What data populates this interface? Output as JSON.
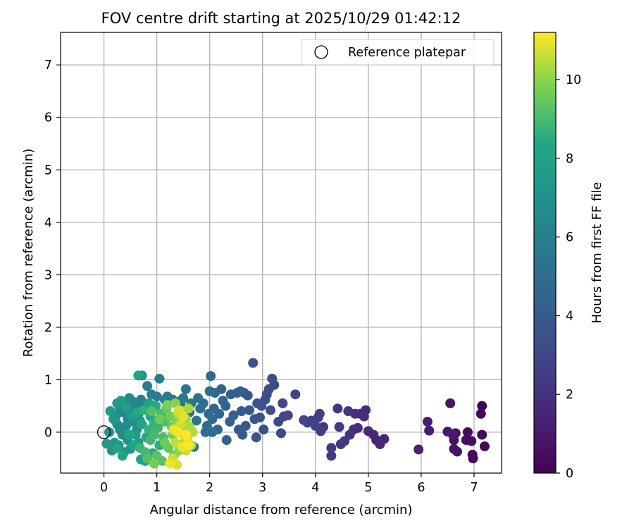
{
  "chart_data": {
    "type": "scatter",
    "title": "FOV centre drift starting at 2025/10/29 01:42:12",
    "xlabel": "Angular distance from reference (arcmin)",
    "ylabel": "Rotation from reference (arcmin)",
    "xlim": [
      -0.82,
      7.52
    ],
    "ylim": [
      -0.78,
      7.62
    ],
    "xticks": [
      0,
      1,
      2,
      3,
      4,
      5,
      6,
      7
    ],
    "yticks": [
      0,
      1,
      2,
      3,
      4,
      5,
      6,
      7
    ],
    "grid": true,
    "legend": {
      "placement": "top-right",
      "entries": [
        "Reference platepar"
      ]
    },
    "reference_point": {
      "name": "Reference platepar",
      "x": 0,
      "y": 0
    },
    "colorbar": {
      "label": "Hours from first FF file",
      "range": [
        0,
        11.2
      ],
      "ticks": [
        0,
        2,
        4,
        6,
        8,
        10
      ],
      "colormap": "viridis"
    },
    "points": [
      {
        "x": 7.15,
        "y": 0.5,
        "t": 0.1
      },
      {
        "x": 7.13,
        "y": 0.35,
        "t": 0.2
      },
      {
        "x": 7.2,
        "y": -0.27,
        "t": 0.2
      },
      {
        "x": 7.15,
        "y": -0.05,
        "t": 0.3
      },
      {
        "x": 6.98,
        "y": -0.5,
        "t": 0.3
      },
      {
        "x": 6.97,
        "y": -0.43,
        "t": 0.4
      },
      {
        "x": 6.88,
        "y": 0.0,
        "t": 0.4
      },
      {
        "x": 6.95,
        "y": -0.17,
        "t": 0.5
      },
      {
        "x": 6.85,
        "y": -0.15,
        "t": 0.5
      },
      {
        "x": 6.65,
        "y": -0.02,
        "t": 0.6
      },
      {
        "x": 6.62,
        "y": -0.15,
        "t": 0.7
      },
      {
        "x": 6.62,
        "y": -0.32,
        "t": 0.7
      },
      {
        "x": 6.68,
        "y": -0.37,
        "t": 0.8
      },
      {
        "x": 6.55,
        "y": 0.55,
        "t": 0.8
      },
      {
        "x": 6.5,
        "y": 0.01,
        "t": 0.9
      },
      {
        "x": 6.6,
        "y": -0.05,
        "t": 1.0
      },
      {
        "x": 6.15,
        "y": 0.03,
        "t": 1.1
      },
      {
        "x": 6.12,
        "y": 0.2,
        "t": 1.2
      },
      {
        "x": 5.95,
        "y": -0.33,
        "t": 1.3
      },
      {
        "x": 5.3,
        "y": -0.13,
        "t": 1.5
      },
      {
        "x": 5.22,
        "y": -0.23,
        "t": 1.5
      },
      {
        "x": 5.15,
        "y": -0.15,
        "t": 1.6
      },
      {
        "x": 5.1,
        "y": -0.05,
        "t": 1.6
      },
      {
        "x": 5.0,
        "y": 0.02,
        "t": 1.7
      },
      {
        "x": 4.95,
        "y": 0.42,
        "t": 1.7
      },
      {
        "x": 4.92,
        "y": 0.3,
        "t": 1.8
      },
      {
        "x": 4.85,
        "y": 0.35,
        "t": 1.8
      },
      {
        "x": 4.8,
        "y": 0.08,
        "t": 1.9
      },
      {
        "x": 4.72,
        "y": 0.05,
        "t": 1.9
      },
      {
        "x": 4.75,
        "y": 0.35,
        "t": 2.0
      },
      {
        "x": 4.65,
        "y": -0.05,
        "t": 2.0
      },
      {
        "x": 4.62,
        "y": 0.4,
        "t": 2.1
      },
      {
        "x": 4.55,
        "y": -0.17,
        "t": 2.1
      },
      {
        "x": 4.48,
        "y": -0.23,
        "t": 2.2
      },
      {
        "x": 4.42,
        "y": 0.45,
        "t": 2.2
      },
      {
        "x": 4.45,
        "y": 0.1,
        "t": 2.3
      },
      {
        "x": 4.3,
        "y": -0.45,
        "t": 2.3
      },
      {
        "x": 4.3,
        "y": -0.3,
        "t": 2.4
      },
      {
        "x": 4.15,
        "y": 0.1,
        "t": 2.4
      },
      {
        "x": 4.1,
        "y": 0.02,
        "t": 2.5
      },
      {
        "x": 4.08,
        "y": 0.35,
        "t": 2.5
      },
      {
        "x": 4.05,
        "y": 0.28,
        "t": 2.6
      },
      {
        "x": 4.0,
        "y": 0.12,
        "t": 2.6
      },
      {
        "x": 3.92,
        "y": 0.22,
        "t": 2.7
      },
      {
        "x": 3.85,
        "y": 0.18,
        "t": 2.7
      },
      {
        "x": 3.78,
        "y": 0.23,
        "t": 2.8
      },
      {
        "x": 3.62,
        "y": 0.72,
        "t": 2.8
      },
      {
        "x": 3.48,
        "y": 0.32,
        "t": 2.9
      },
      {
        "x": 3.38,
        "y": 0.55,
        "t": 2.9
      },
      {
        "x": 3.4,
        "y": 0.3,
        "t": 3.0
      },
      {
        "x": 3.35,
        "y": -0.02,
        "t": 3.0
      },
      {
        "x": 3.3,
        "y": 0.2,
        "t": 3.1
      },
      {
        "x": 3.22,
        "y": 0.9,
        "t": 3.1
      },
      {
        "x": 3.18,
        "y": 1.02,
        "t": 3.2
      },
      {
        "x": 3.12,
        "y": 0.82,
        "t": 3.2
      },
      {
        "x": 3.15,
        "y": 0.42,
        "t": 3.3
      },
      {
        "x": 3.08,
        "y": 0.72,
        "t": 3.3
      },
      {
        "x": 3.05,
        "y": 0.62,
        "t": 3.4
      },
      {
        "x": 3.02,
        "y": 0.05,
        "t": 3.4
      },
      {
        "x": 2.98,
        "y": 0.5,
        "t": 3.5
      },
      {
        "x": 2.95,
        "y": 0.28,
        "t": 3.5
      },
      {
        "x": 2.9,
        "y": 0.55,
        "t": 3.6
      },
      {
        "x": 2.82,
        "y": 1.32,
        "t": 3.6
      },
      {
        "x": 2.85,
        "y": 0.25,
        "t": 3.7
      },
      {
        "x": 2.88,
        "y": -0.1,
        "t": 3.7
      },
      {
        "x": 2.75,
        "y": 0.42,
        "t": 3.8
      },
      {
        "x": 2.72,
        "y": 0.7,
        "t": 3.8
      },
      {
        "x": 2.68,
        "y": 0.12,
        "t": 3.9
      },
      {
        "x": 2.65,
        "y": 0.75,
        "t": 3.9
      },
      {
        "x": 2.62,
        "y": -0.05,
        "t": 4.0
      },
      {
        "x": 2.58,
        "y": 0.78,
        "t": 4.0
      },
      {
        "x": 2.6,
        "y": 0.4,
        "t": 4.1
      },
      {
        "x": 2.55,
        "y": 0.05,
        "t": 4.1
      },
      {
        "x": 2.52,
        "y": 0.75,
        "t": 4.2
      },
      {
        "x": 2.45,
        "y": 0.32,
        "t": 4.2
      },
      {
        "x": 2.4,
        "y": 0.72,
        "t": 4.3
      },
      {
        "x": 2.38,
        "y": 0.2,
        "t": 4.3
      },
      {
        "x": 2.32,
        "y": -0.15,
        "t": 4.4
      },
      {
        "x": 2.3,
        "y": 0.5,
        "t": 4.4
      },
      {
        "x": 2.25,
        "y": 0.6,
        "t": 4.5
      },
      {
        "x": 2.22,
        "y": 0.82,
        "t": 4.5
      },
      {
        "x": 2.18,
        "y": 0.35,
        "t": 4.6
      },
      {
        "x": 2.15,
        "y": 0.05,
        "t": 4.6
      },
      {
        "x": 2.1,
        "y": 0.75,
        "t": 4.7
      },
      {
        "x": 2.08,
        "y": 0.45,
        "t": 4.7
      },
      {
        "x": 2.05,
        "y": 0.25,
        "t": 4.8
      },
      {
        "x": 2.02,
        "y": 1.07,
        "t": 4.8
      },
      {
        "x": 2.0,
        "y": 0.78,
        "t": 4.9
      },
      {
        "x": 1.98,
        "y": 0.35,
        "t": 4.9
      },
      {
        "x": 1.95,
        "y": 0.12,
        "t": 5.0
      },
      {
        "x": 1.92,
        "y": 0.0,
        "t": 5.0
      },
      {
        "x": 2.05,
        "y": 0.0,
        "t": 5.1
      },
      {
        "x": 1.88,
        "y": 0.55,
        "t": 5.1
      },
      {
        "x": 1.82,
        "y": 0.45,
        "t": 5.2
      },
      {
        "x": 1.78,
        "y": 0.65,
        "t": 5.2
      },
      {
        "x": 1.75,
        "y": 0.22,
        "t": 5.3
      },
      {
        "x": 1.7,
        "y": -0.28,
        "t": 5.3
      },
      {
        "x": 1.65,
        "y": 0.55,
        "t": 5.4
      },
      {
        "x": 1.62,
        "y": 0.38,
        "t": 5.4
      },
      {
        "x": 1.55,
        "y": 0.82,
        "t": 5.5
      },
      {
        "x": 1.5,
        "y": 0.65,
        "t": 5.5
      },
      {
        "x": 1.45,
        "y": 0.55,
        "t": 5.6
      },
      {
        "x": 1.4,
        "y": 0.58,
        "t": 5.6
      },
      {
        "x": 1.3,
        "y": 0.62,
        "t": 5.7
      },
      {
        "x": 1.2,
        "y": 0.68,
        "t": 5.7
      },
      {
        "x": 1.05,
        "y": 1.02,
        "t": 5.8
      },
      {
        "x": 1.15,
        "y": 0.62,
        "t": 5.8
      },
      {
        "x": 1.0,
        "y": 0.68,
        "t": 5.9
      },
      {
        "x": 0.9,
        "y": 0.72,
        "t": 5.9
      },
      {
        "x": 0.85,
        "y": 0.45,
        "t": 6.0
      },
      {
        "x": 0.82,
        "y": 0.88,
        "t": 6.0
      },
      {
        "x": 0.75,
        "y": 0.55,
        "t": 6.1
      },
      {
        "x": 0.7,
        "y": 0.62,
        "t": 6.1
      },
      {
        "x": 0.65,
        "y": 0.35,
        "t": 6.2
      },
      {
        "x": 0.6,
        "y": 0.48,
        "t": 6.2
      },
      {
        "x": 0.55,
        "y": 0.58,
        "t": 6.3
      },
      {
        "x": 0.5,
        "y": 0.42,
        "t": 6.3
      },
      {
        "x": 0.48,
        "y": 0.65,
        "t": 6.4
      },
      {
        "x": 0.45,
        "y": 0.25,
        "t": 6.4
      },
      {
        "x": 0.4,
        "y": 0.52,
        "t": 6.5
      },
      {
        "x": 0.35,
        "y": 0.38,
        "t": 6.5
      },
      {
        "x": 0.3,
        "y": 0.45,
        "t": 6.6
      },
      {
        "x": 0.25,
        "y": 0.15,
        "t": 6.6
      },
      {
        "x": 0.22,
        "y": 0.3,
        "t": 6.7
      },
      {
        "x": 0.3,
        "y": 0.05,
        "t": 6.7
      },
      {
        "x": 0.35,
        "y": -0.05,
        "t": 6.8
      },
      {
        "x": 0.42,
        "y": 0.12,
        "t": 6.8
      },
      {
        "x": 0.55,
        "y": 0.2,
        "t": 6.9
      },
      {
        "x": 0.62,
        "y": 0.05,
        "t": 6.9
      },
      {
        "x": 0.68,
        "y": 0.22,
        "t": 7.0
      },
      {
        "x": 0.72,
        "y": 1.08,
        "t": 7.0
      },
      {
        "x": 0.45,
        "y": -0.15,
        "t": 7.1
      },
      {
        "x": 0.5,
        "y": -0.32,
        "t": 7.1
      },
      {
        "x": 0.38,
        "y": -0.38,
        "t": 7.2
      },
      {
        "x": 0.28,
        "y": -0.25,
        "t": 7.2
      },
      {
        "x": 0.2,
        "y": -0.2,
        "t": 7.3
      },
      {
        "x": 0.15,
        "y": -0.35,
        "t": 7.3
      },
      {
        "x": 0.1,
        "y": 0.0,
        "t": 7.4
      },
      {
        "x": 0.05,
        "y": -0.22,
        "t": 7.4
      },
      {
        "x": 0.12,
        "y": 0.4,
        "t": 7.5
      },
      {
        "x": 0.18,
        "y": 0.25,
        "t": 7.5
      },
      {
        "x": 0.25,
        "y": 0.55,
        "t": 7.6
      },
      {
        "x": 0.32,
        "y": 0.6,
        "t": 7.6
      },
      {
        "x": 0.42,
        "y": 0.48,
        "t": 7.7
      },
      {
        "x": 0.52,
        "y": 0.3,
        "t": 7.7
      },
      {
        "x": 0.6,
        "y": -0.05,
        "t": 7.8
      },
      {
        "x": 0.65,
        "y": -0.2,
        "t": 7.8
      },
      {
        "x": 0.7,
        "y": -0.52,
        "t": 7.9
      },
      {
        "x": 0.78,
        "y": -0.55,
        "t": 7.9
      },
      {
        "x": 0.65,
        "y": 1.08,
        "t": 8.0
      },
      {
        "x": 0.85,
        "y": 0.55,
        "t": 8.0
      },
      {
        "x": 0.35,
        "y": -0.45,
        "t": 8.1
      },
      {
        "x": 0.25,
        "y": -0.3,
        "t": 8.1
      },
      {
        "x": 0.48,
        "y": -0.05,
        "t": 8.2
      },
      {
        "x": 0.55,
        "y": -0.25,
        "t": 8.2
      },
      {
        "x": 0.62,
        "y": 0.38,
        "t": 8.3
      },
      {
        "x": 0.72,
        "y": 0.15,
        "t": 8.3
      },
      {
        "x": 0.8,
        "y": -0.1,
        "t": 8.4
      },
      {
        "x": 0.88,
        "y": 0.3,
        "t": 8.4
      },
      {
        "x": 0.92,
        "y": -0.4,
        "t": 8.5
      },
      {
        "x": 0.98,
        "y": 0.5,
        "t": 8.5
      },
      {
        "x": 1.05,
        "y": -0.25,
        "t": 8.6
      },
      {
        "x": 0.75,
        "y": 0.42,
        "t": 8.6
      },
      {
        "x": 0.85,
        "y": 0.05,
        "t": 8.7
      },
      {
        "x": 0.95,
        "y": 0.18,
        "t": 8.7
      },
      {
        "x": 1.02,
        "y": 0.08,
        "t": 8.8
      },
      {
        "x": 0.68,
        "y": -0.3,
        "t": 8.8
      },
      {
        "x": 0.78,
        "y": -0.38,
        "t": 8.9
      },
      {
        "x": 0.88,
        "y": -0.15,
        "t": 8.9
      },
      {
        "x": 0.95,
        "y": -0.05,
        "t": 9.0
      },
      {
        "x": 1.08,
        "y": 0.35,
        "t": 9.0
      },
      {
        "x": 1.12,
        "y": -0.1,
        "t": 9.1
      },
      {
        "x": 1.15,
        "y": 0.2,
        "t": 9.1
      },
      {
        "x": 0.82,
        "y": -0.5,
        "t": 9.2
      },
      {
        "x": 0.9,
        "y": 0.4,
        "t": 9.2
      },
      {
        "x": 1.0,
        "y": -0.45,
        "t": 9.3
      },
      {
        "x": 1.1,
        "y": -0.55,
        "t": 9.3
      },
      {
        "x": 1.18,
        "y": 0.45,
        "t": 9.4
      },
      {
        "x": 1.22,
        "y": -0.3,
        "t": 9.4
      },
      {
        "x": 1.28,
        "y": 0.1,
        "t": 9.5
      },
      {
        "x": 1.32,
        "y": -0.45,
        "t": 9.5
      },
      {
        "x": 1.05,
        "y": 0.25,
        "t": 9.6
      },
      {
        "x": 1.15,
        "y": -0.2,
        "t": 9.6
      },
      {
        "x": 1.25,
        "y": 0.3,
        "t": 9.7
      },
      {
        "x": 0.95,
        "y": -0.6,
        "t": 9.7
      },
      {
        "x": 1.2,
        "y": 0.52,
        "t": 9.8
      },
      {
        "x": 1.3,
        "y": -0.05,
        "t": 9.8
      },
      {
        "x": 1.35,
        "y": 0.55,
        "t": 9.9
      },
      {
        "x": 1.38,
        "y": 0.2,
        "t": 9.9
      },
      {
        "x": 1.42,
        "y": -0.35,
        "t": 10.0
      },
      {
        "x": 1.45,
        "y": 0.05,
        "t": 10.0
      },
      {
        "x": 1.48,
        "y": 0.4,
        "t": 10.1
      },
      {
        "x": 1.52,
        "y": -0.2,
        "t": 10.1
      },
      {
        "x": 1.55,
        "y": 0.25,
        "t": 10.2
      },
      {
        "x": 1.58,
        "y": -0.1,
        "t": 10.2
      },
      {
        "x": 1.6,
        "y": 0.45,
        "t": 10.3
      },
      {
        "x": 1.62,
        "y": 0.1,
        "t": 10.3
      },
      {
        "x": 1.65,
        "y": -0.25,
        "t": 10.4
      },
      {
        "x": 1.68,
        "y": 0.0,
        "t": 10.4
      },
      {
        "x": 1.4,
        "y": 0.35,
        "t": 10.5
      },
      {
        "x": 1.35,
        "y": -0.2,
        "t": 10.5
      },
      {
        "x": 1.5,
        "y": -0.05,
        "t": 10.6
      },
      {
        "x": 1.55,
        "y": -0.35,
        "t": 10.6
      },
      {
        "x": 1.45,
        "y": 0.15,
        "t": 10.7
      },
      {
        "x": 1.3,
        "y": -0.5,
        "t": 10.7
      },
      {
        "x": 1.38,
        "y": -0.62,
        "t": 10.8
      },
      {
        "x": 1.42,
        "y": 0.42,
        "t": 10.8
      },
      {
        "x": 1.5,
        "y": 0.3,
        "t": 10.9
      },
      {
        "x": 1.58,
        "y": -0.15,
        "t": 10.9
      },
      {
        "x": 1.32,
        "y": 0.05,
        "t": 11.0
      },
      {
        "x": 1.48,
        "y": -0.28,
        "t": 11.0
      },
      {
        "x": 1.25,
        "y": -0.6,
        "t": 11.1
      },
      {
        "x": 1.4,
        "y": 0.0,
        "t": 11.1
      },
      {
        "x": 1.55,
        "y": -0.05,
        "t": 11.2
      },
      {
        "x": 1.6,
        "y": -0.25,
        "t": 11.2
      }
    ]
  }
}
